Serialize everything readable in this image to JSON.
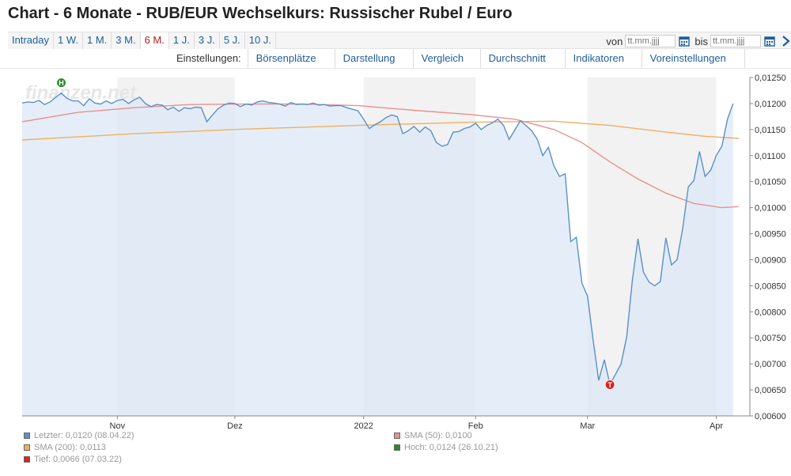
{
  "title": "Chart - 6 Monate - RUB/EUR Wechselkurs: Russischer Rubel / Euro",
  "tabs": [
    {
      "label": "Intraday",
      "active": false
    },
    {
      "label": "1 W.",
      "active": false
    },
    {
      "label": "1 M.",
      "active": false
    },
    {
      "label": "3 M.",
      "active": false
    },
    {
      "label": "6 M.",
      "active": true
    },
    {
      "label": "1 J.",
      "active": false
    },
    {
      "label": "3 J.",
      "active": false
    },
    {
      "label": "5 J.",
      "active": false
    },
    {
      "label": "10 J.",
      "active": false
    }
  ],
  "daterange": {
    "from_label": "von",
    "from_placeholder": "tt.mm.jjjj",
    "to_label": "bis",
    "to_placeholder": "tt.mm.jjjj"
  },
  "settings": {
    "label": "Einstellungen:",
    "items": [
      "Börsenplätze",
      "Darstellung",
      "Vergleich",
      "Durchschnitt",
      "Indikatoren",
      "Voreinstellungen"
    ]
  },
  "watermark": "finanzen.net",
  "colors": {
    "price_line": "#5b8fc9",
    "price_fill": "#dce8f5",
    "sma50": "#e89090",
    "sma200": "#f0b060",
    "low_marker": "#e02020",
    "high_marker": "#2a8a2a"
  },
  "legend": {
    "last": "Letzter: 0,0120 (08.04.22)",
    "sma50": "SMA (50): 0,0100",
    "sma200": "SMA (200): 0,0113",
    "high": "Hoch: 0,0124 (26.10.21)",
    "low": "Tief: 0,0066 (07.03.22)"
  },
  "chart_data": {
    "type": "line",
    "x_tick_labels": [
      "Nov",
      "Dez",
      "2022",
      "Feb",
      "Mar",
      "Apr"
    ],
    "y_tick_labels": [
      "0,01250",
      "0,01200",
      "0,01150",
      "0,01100",
      "0,01050",
      "0,01000",
      "0,00950",
      "0,00900",
      "0,00850",
      "0,00800",
      "0,00750",
      "0,00700",
      "0,00650",
      "0,00600"
    ],
    "ylim": [
      0.006,
      0.0125
    ],
    "xlim": [
      0,
      130
    ],
    "x_tick_positions": [
      17,
      38,
      61,
      81,
      101,
      124
    ],
    "shaded_month_bands": [
      [
        17,
        38
      ],
      [
        61,
        81
      ],
      [
        101,
        124
      ]
    ],
    "series": [
      {
        "name": "Letzter",
        "values": [
          [
            0,
            0.01201
          ],
          [
            1,
            0.01203
          ],
          [
            2,
            0.01202
          ],
          [
            3,
            0.01206
          ],
          [
            4,
            0.01198
          ],
          [
            5,
            0.01203
          ],
          [
            6,
            0.01212
          ],
          [
            7,
            0.0122
          ],
          [
            8,
            0.0121
          ],
          [
            9,
            0.01205
          ],
          [
            10,
            0.01205
          ],
          [
            11,
            0.01196
          ],
          [
            12,
            0.01209
          ],
          [
            13,
            0.01201
          ],
          [
            14,
            0.01199
          ],
          [
            15,
            0.01205
          ],
          [
            16,
            0.012
          ],
          [
            17,
            0.01206
          ],
          [
            18,
            0.01208
          ],
          [
            19,
            0.012
          ],
          [
            20,
            0.01207
          ],
          [
            21,
            0.01212
          ],
          [
            22,
            0.012
          ],
          [
            23,
            0.01194
          ],
          [
            24,
            0.01198
          ],
          [
            25,
            0.01197
          ],
          [
            26,
            0.01188
          ],
          [
            27,
            0.01193
          ],
          [
            28,
            0.01185
          ],
          [
            29,
            0.01192
          ],
          [
            30,
            0.0119
          ],
          [
            31,
            0.01193
          ],
          [
            32,
            0.01192
          ],
          [
            33,
            0.01165
          ],
          [
            34,
            0.01178
          ],
          [
            35,
            0.0119
          ],
          [
            36,
            0.01197
          ],
          [
            37,
            0.01201
          ],
          [
            38,
            0.012
          ],
          [
            39,
            0.01194
          ],
          [
            40,
            0.01199
          ],
          [
            41,
            0.01197
          ],
          [
            42,
            0.01203
          ],
          [
            43,
            0.01205
          ],
          [
            44,
            0.01202
          ],
          [
            45,
            0.01201
          ],
          [
            46,
            0.01199
          ],
          [
            47,
            0.01195
          ],
          [
            48,
            0.01202
          ],
          [
            49,
            0.01198
          ],
          [
            50,
            0.01199
          ],
          [
            51,
            0.01198
          ],
          [
            52,
            0.01201
          ],
          [
            53,
            0.01197
          ],
          [
            54,
            0.01198
          ],
          [
            55,
            0.01195
          ],
          [
            56,
            0.01196
          ],
          [
            57,
            0.01196
          ],
          [
            58,
            0.01192
          ],
          [
            59,
            0.01189
          ],
          [
            60,
            0.01186
          ],
          [
            61,
            0.0117
          ],
          [
            62,
            0.01152
          ],
          [
            63,
            0.01159
          ],
          [
            64,
            0.01165
          ],
          [
            65,
            0.01173
          ],
          [
            66,
            0.01178
          ],
          [
            67,
            0.01175
          ],
          [
            68,
            0.01142
          ],
          [
            69,
            0.01148
          ],
          [
            70,
            0.01156
          ],
          [
            71,
            0.01145
          ],
          [
            72,
            0.01155
          ],
          [
            73,
            0.01148
          ],
          [
            74,
            0.01125
          ],
          [
            75,
            0.01118
          ],
          [
            76,
            0.01121
          ],
          [
            77,
            0.01145
          ],
          [
            78,
            0.01146
          ],
          [
            79,
            0.01152
          ],
          [
            80,
            0.01155
          ],
          [
            81,
            0.01162
          ],
          [
            82,
            0.0115
          ],
          [
            83,
            0.01158
          ],
          [
            84,
            0.01163
          ],
          [
            85,
            0.0117
          ],
          [
            86,
            0.01158
          ],
          [
            87,
            0.01131
          ],
          [
            88,
            0.01149
          ],
          [
            89,
            0.01167
          ],
          [
            90,
            0.01158
          ],
          [
            91,
            0.01148
          ],
          [
            92,
            0.01132
          ],
          [
            93,
            0.011
          ],
          [
            94,
            0.01116
          ],
          [
            95,
            0.0108
          ],
          [
            96,
            0.0106
          ],
          [
            97,
            0.01065
          ],
          [
            98,
            0.00935
          ],
          [
            99,
            0.00943
          ],
          [
            100,
            0.00855
          ],
          [
            101,
            0.0083
          ],
          [
            102,
            0.00746
          ],
          [
            103,
            0.00668
          ],
          [
            104,
            0.00708
          ],
          [
            105,
            0.0066
          ],
          [
            106,
            0.0068
          ],
          [
            107,
            0.007
          ],
          [
            108,
            0.00752
          ],
          [
            109,
            0.0086
          ],
          [
            110,
            0.0094
          ],
          [
            111,
            0.00876
          ],
          [
            112,
            0.00857
          ],
          [
            113,
            0.0085
          ],
          [
            114,
            0.00858
          ],
          [
            115,
            0.00942
          ],
          [
            116,
            0.0089
          ],
          [
            117,
            0.009
          ],
          [
            118,
            0.0096
          ],
          [
            119,
            0.0104
          ],
          [
            120,
            0.01052
          ],
          [
            121,
            0.01108
          ],
          [
            122,
            0.0106
          ],
          [
            123,
            0.01072
          ],
          [
            124,
            0.011
          ],
          [
            125,
            0.01118
          ],
          [
            126,
            0.0117
          ],
          [
            127,
            0.012
          ]
        ]
      },
      {
        "name": "SMA (50)",
        "values": [
          [
            0,
            0.01165
          ],
          [
            10,
            0.01183
          ],
          [
            20,
            0.01192
          ],
          [
            30,
            0.01198
          ],
          [
            40,
            0.01199
          ],
          [
            50,
            0.01199
          ],
          [
            60,
            0.01196
          ],
          [
            70,
            0.01187
          ],
          [
            80,
            0.01179
          ],
          [
            88,
            0.0117
          ],
          [
            95,
            0.0115
          ],
          [
            100,
            0.01125
          ],
          [
            105,
            0.01088
          ],
          [
            110,
            0.01055
          ],
          [
            115,
            0.01028
          ],
          [
            120,
            0.01008
          ],
          [
            125,
            0.01
          ],
          [
            128,
            0.01002
          ]
        ]
      },
      {
        "name": "SMA (200)",
        "values": [
          [
            0,
            0.0113
          ],
          [
            20,
            0.01142
          ],
          [
            40,
            0.01151
          ],
          [
            60,
            0.01158
          ],
          [
            80,
            0.01164
          ],
          [
            95,
            0.01166
          ],
          [
            105,
            0.01158
          ],
          [
            115,
            0.01145
          ],
          [
            122,
            0.01137
          ],
          [
            128,
            0.01133
          ]
        ]
      }
    ],
    "high": {
      "x": 7,
      "value": 0.0124,
      "label": "H"
    },
    "low": {
      "x": 105,
      "value": 0.0066,
      "label": "T"
    }
  }
}
